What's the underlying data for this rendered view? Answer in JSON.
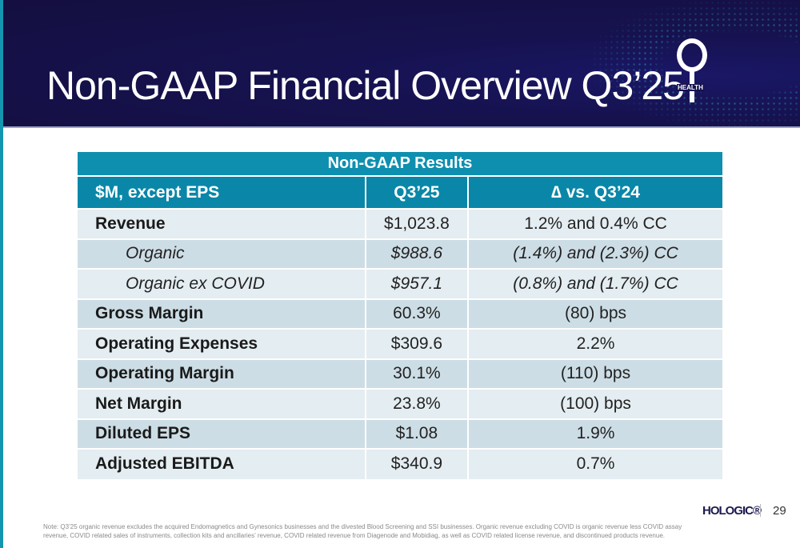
{
  "title": "Non-GAAP Financial Overview Q3’25",
  "logo": {
    "text": "HEALTH"
  },
  "table": {
    "caption": "Non-GAAP Results",
    "headers": [
      "$M, except EPS",
      "Q3’25",
      "∆ vs. Q3’24"
    ],
    "rows": [
      {
        "label": "Revenue",
        "value": "$1,023.8",
        "change": "1.2% and 0.4% CC",
        "style": "bold"
      },
      {
        "label": "Organic",
        "value": "$988.6",
        "change": "(1.4%) and (2.3%) CC",
        "style": "italic"
      },
      {
        "label": "Organic ex COVID",
        "value": "$957.1",
        "change": "(0.8%) and (1.7%) CC",
        "style": "italic"
      },
      {
        "label": "Gross Margin",
        "value": "60.3%",
        "change": "(80) bps",
        "style": "bold"
      },
      {
        "label": "Operating Expenses",
        "value": "$309.6",
        "change": "2.2%",
        "style": "bold"
      },
      {
        "label": "Operating Margin",
        "value": "30.1%",
        "change": "(110) bps",
        "style": "bold"
      },
      {
        "label": "Net Margin",
        "value": "23.8%",
        "change": "(100) bps",
        "style": "bold"
      },
      {
        "label": "Diluted EPS",
        "value": "$1.08",
        "change": "1.9%",
        "style": "bold"
      },
      {
        "label": "Adjusted EBITDA",
        "value": "$340.9",
        "change": "0.7%",
        "style": "bold"
      }
    ]
  },
  "footer": {
    "brand": "HOLOGIC®",
    "page": "29",
    "note": "Note: Q3’25 organic revenue excludes the acquired Endomagnetics and Gynesonics businesses and the divested Blood Screening and SSI businesses. Organic revenue excluding COVID is organic revenue less COVID assay revenue, COVID related sales of instruments, collection kits and ancillaries’ revenue, COVID related revenue from Diagenode and Mobidiag, as well as COVID related license revenue, and discontinued products revenue."
  },
  "colors": {
    "header_bg": "#16124f",
    "table_header": "#0e8fb0",
    "row_light": "#e4edf1",
    "row_dark": "#cddde5"
  }
}
